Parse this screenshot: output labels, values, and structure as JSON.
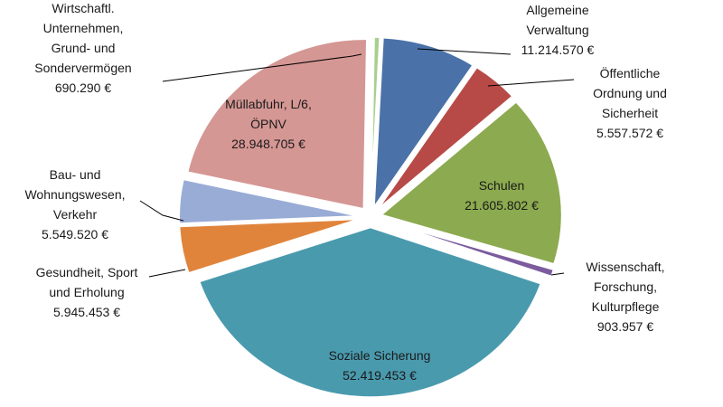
{
  "chart_data": {
    "type": "pie",
    "exploded": true,
    "currency": "€",
    "slices": [
      {
        "label_lines": [
          "Allgemeine",
          "Verwaltung"
        ],
        "value_text": "11.214.570 €",
        "value": 11214570,
        "color": "#4a72a8"
      },
      {
        "label_lines": [
          "Öffentliche",
          "Ordnung und",
          "Sicherheit"
        ],
        "value_text": "5.557.572 €",
        "value": 5557572,
        "color": "#b74a47"
      },
      {
        "label_lines": [
          "Schulen"
        ],
        "value_text": "21.605.802 €",
        "value": 21605802,
        "color": "#8caa4f"
      },
      {
        "label_lines": [
          "Wissenschaft,",
          "Forschung,",
          "Kulturpflege"
        ],
        "value_text": "903.957 €",
        "value": 903957,
        "color": "#7c5c9e"
      },
      {
        "label_lines": [
          "Soziale Sicherung"
        ],
        "value_text": "52.419.453 €",
        "value": 52419453,
        "color": "#4a9aae"
      },
      {
        "label_lines": [
          "Gesundheit, Sport",
          "und Erholung"
        ],
        "value_text": "5.945.453 €",
        "value": 5945453,
        "color": "#e0843c"
      },
      {
        "label_lines": [
          "Bau- und",
          "Wohnungswesen,",
          "Verkehr"
        ],
        "value_text": "5.549.520 €",
        "value": 5549520,
        "color": "#98acd6"
      },
      {
        "label_lines": [
          "Müllabfuhr, L/6,",
          "ÖPNV"
        ],
        "value_text": "28.948.705 €",
        "value": 28948705,
        "color": "#d59794"
      },
      {
        "label_lines": [
          "Wirtschaftl.",
          "Unternehmen,",
          "Grund- und",
          "Sondervermögen"
        ],
        "value_text": "690.290 €",
        "value": 690290,
        "color": "#a9cf8f"
      }
    ]
  }
}
